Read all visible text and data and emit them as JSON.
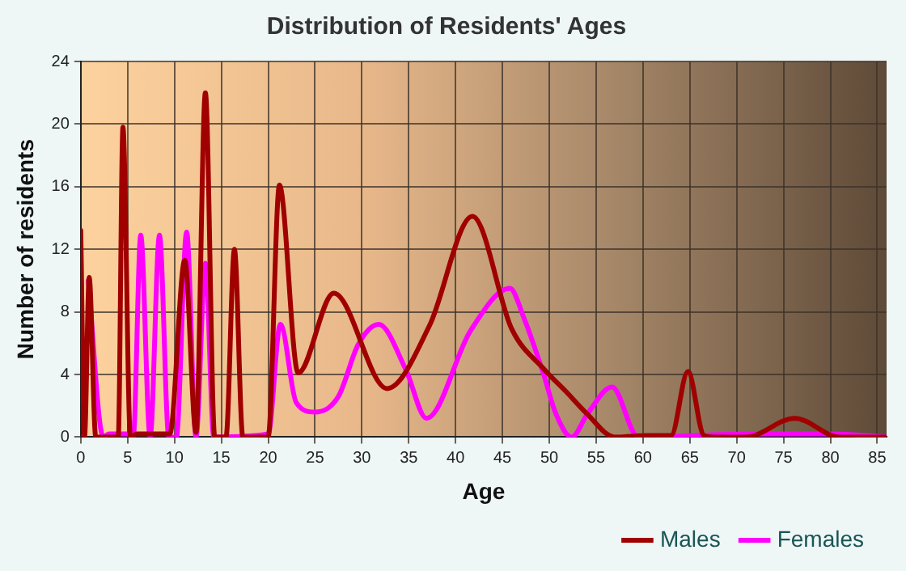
{
  "chart_data": {
    "type": "line",
    "title": "Distribution of Residents' Ages",
    "xlabel": "Age",
    "ylabel": "Number of residents",
    "xlim": [
      0,
      86
    ],
    "xticks": [
      0,
      5,
      10,
      15,
      20,
      25,
      30,
      35,
      40,
      45,
      50,
      55,
      60,
      65,
      70,
      75,
      80,
      85
    ],
    "ylim": [
      0,
      24
    ],
    "yticks": [
      0,
      4,
      8,
      12,
      16,
      20,
      24
    ],
    "grid": true,
    "legend": "bottom right",
    "marker": "none",
    "line_style": "solid",
    "series": [
      {
        "name": "Males",
        "color": "#a00000",
        "x": [
          0,
          0.4,
          0.9,
          1.6,
          2,
          4,
          4.5,
          5.3,
          6,
          9.5,
          11.1,
          12.3,
          13.3,
          14.3,
          15.5,
          16.4,
          17.3,
          20,
          21.2,
          23.2,
          27,
          32.7,
          37.2,
          41.8,
          46,
          49.5,
          51.8,
          54,
          57,
          60.5,
          63,
          64.8,
          66.5,
          67.5,
          71,
          76.2,
          81,
          86
        ],
        "values": [
          13.2,
          0,
          10.2,
          0,
          0,
          0,
          19.8,
          0,
          0.2,
          0.2,
          11.3,
          0.3,
          22,
          0,
          0,
          12,
          0,
          0,
          16.1,
          4.1,
          9.2,
          3.1,
          7.1,
          14.1,
          6.9,
          4.3,
          2.9,
          1.5,
          0,
          0.1,
          0.1,
          4.2,
          0.1,
          0,
          0,
          1.2,
          0,
          0
        ]
      },
      {
        "name": "Females",
        "color": "#ff00ff",
        "x": [
          0.8,
          2.4,
          3,
          5,
          5.6,
          6.4,
          7.4,
          8.4,
          9.4,
          10.2,
          11.3,
          12.3,
          13.3,
          14.2,
          20,
          21.3,
          23,
          25,
          27.5,
          29.6,
          31.8,
          34.7,
          36.9,
          41.6,
          45.8,
          47.3,
          49.3,
          50.7,
          52.4,
          54.1,
          56.7,
          59.5,
          72,
          80,
          86
        ],
        "values": [
          10,
          0,
          0.2,
          0.2,
          0,
          12.9,
          0,
          12.9,
          0,
          0,
          13.1,
          0,
          11.1,
          0,
          0.2,
          7.2,
          2.2,
          1.6,
          2.6,
          5.9,
          7.2,
          4.3,
          1.2,
          6.8,
          9.5,
          7.6,
          4.2,
          1.5,
          0,
          1.5,
          3.2,
          0,
          0.2,
          0.2,
          0
        ]
      }
    ]
  }
}
